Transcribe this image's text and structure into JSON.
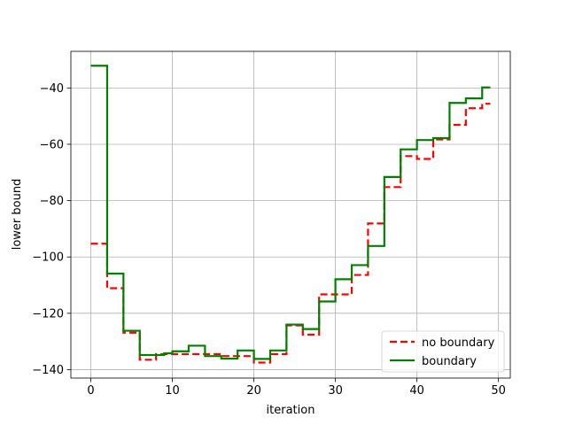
{
  "chart_data": {
    "type": "line",
    "title": "",
    "xlabel": "iteration",
    "ylabel": "lower bound",
    "xlim": [
      -2.45,
      51.45
    ],
    "ylim": [
      -143,
      -27
    ],
    "xticks": [
      0,
      10,
      20,
      30,
      40,
      50
    ],
    "yticks": [
      -140,
      -120,
      -100,
      -80,
      -60,
      -40
    ],
    "grid": true,
    "legend_position": "lower right",
    "step_style": "post",
    "x": [
      0,
      1,
      2,
      3,
      4,
      5,
      6,
      7,
      8,
      9,
      10,
      11,
      12,
      13,
      14,
      15,
      16,
      17,
      18,
      19,
      20,
      21,
      22,
      23,
      24,
      25,
      26,
      27,
      28,
      29,
      30,
      31,
      32,
      33,
      34,
      35,
      36,
      37,
      38,
      39,
      40,
      41,
      42,
      43,
      44,
      45,
      46,
      47,
      48,
      49
    ],
    "series": [
      {
        "name": "no boundary",
        "color": "#ff0000",
        "dash": "dashed",
        "values": [
          -95.3,
          -95.3,
          -111.1,
          -111.1,
          -126.9,
          -126.9,
          -136.5,
          -136.5,
          -134.5,
          -134.5,
          -134.5,
          -134.5,
          -134.5,
          -134.5,
          -134.5,
          -134.5,
          -135.2,
          -135.2,
          -135.2,
          -135.2,
          -137.5,
          -137.5,
          -134.5,
          -134.5,
          -124.3,
          -124.3,
          -127.6,
          -127.6,
          -113.3,
          -113.3,
          -113.3,
          -113.3,
          -106.4,
          -106.4,
          -88.1,
          -88.1,
          -75.2,
          -75.2,
          -64.2,
          -64.2,
          -65.2,
          -65.2,
          -58.3,
          -58.3,
          -53.1,
          -53.1,
          -47.2,
          -47.2,
          -45.6,
          -45.6
        ]
      },
      {
        "name": "boundary",
        "color": "#008000",
        "dash": "solid",
        "values": [
          -32.1,
          -32.1,
          -105.9,
          -105.9,
          -126.2,
          -126.2,
          -134.8,
          -134.8,
          -134.8,
          -134.2,
          -133.5,
          -133.5,
          -131.5,
          -131.5,
          -135.2,
          -135.2,
          -136.1,
          -136.1,
          -133.2,
          -133.2,
          -136.2,
          -136.2,
          -133.2,
          -133.2,
          -124.0,
          -124.0,
          -125.6,
          -125.6,
          -115.8,
          -115.8,
          -107.9,
          -107.9,
          -102.9,
          -102.9,
          -96.1,
          -96.1,
          -71.6,
          -71.6,
          -61.8,
          -61.8,
          -58.5,
          -58.5,
          -57.8,
          -57.8,
          -45.3,
          -45.3,
          -43.7,
          -43.7,
          -39.8,
          -39.8
        ]
      }
    ]
  }
}
